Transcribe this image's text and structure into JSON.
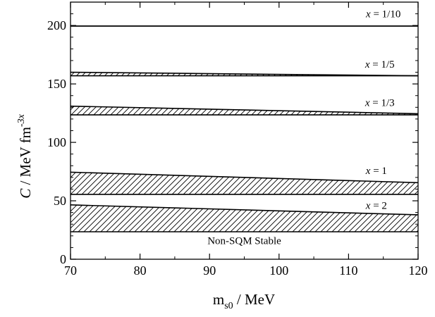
{
  "chart_data": {
    "type": "area",
    "xlim": [
      70,
      120
    ],
    "ylim": [
      0,
      220
    ],
    "x_ticks": [
      70,
      80,
      90,
      100,
      110,
      120
    ],
    "y_ticks": [
      0,
      50,
      100,
      150,
      200
    ],
    "x_minor_step": 5,
    "y_minor_step": 10,
    "xlabel_main": "m",
    "xlabel_sub": "s0",
    "xlabel_rest": " / MeV",
    "ylabel_italic": "C",
    "ylabel_rest": " / MeV fm",
    "ylabel_sup": "-3x",
    "grid": false,
    "bands": [
      {
        "name": "x = 1/10",
        "lower": [
          [
            70,
            199.5
          ],
          [
            120,
            199.5
          ]
        ],
        "upper": [
          [
            70,
            199.5
          ],
          [
            120,
            199.5
          ]
        ]
      },
      {
        "name": "x = 1/5",
        "lower": [
          [
            70,
            157
          ],
          [
            120,
            157
          ]
        ],
        "upper": [
          [
            70,
            160
          ],
          [
            120,
            157
          ]
        ]
      },
      {
        "name": "x = 1/3",
        "lower": [
          [
            70,
            123.5
          ],
          [
            120,
            123.5
          ]
        ],
        "upper": [
          [
            70,
            131
          ],
          [
            120,
            124.5
          ]
        ]
      },
      {
        "name": "x = 1",
        "lower": [
          [
            70,
            55.5
          ],
          [
            120,
            55.5
          ]
        ],
        "upper": [
          [
            70,
            74.5
          ],
          [
            120,
            65.5
          ]
        ]
      },
      {
        "name": "x = 2",
        "lower": [
          [
            70,
            23.5
          ],
          [
            120,
            23.5
          ]
        ],
        "upper": [
          [
            70,
            46.5
          ],
          [
            120,
            38
          ]
        ]
      }
    ],
    "annotations": [
      {
        "text": "x = 1/10",
        "x": 115,
        "y": 207
      },
      {
        "text": "x = 1/5",
        "x": 114.5,
        "y": 164
      },
      {
        "text": "x = 1/3",
        "x": 114.5,
        "y": 131
      },
      {
        "text": "x = 1",
        "x": 114,
        "y": 73
      },
      {
        "text": "x = 2",
        "x": 114,
        "y": 43
      },
      {
        "text": "Non-SQM Stable",
        "x": 95,
        "y": 13
      }
    ]
  }
}
